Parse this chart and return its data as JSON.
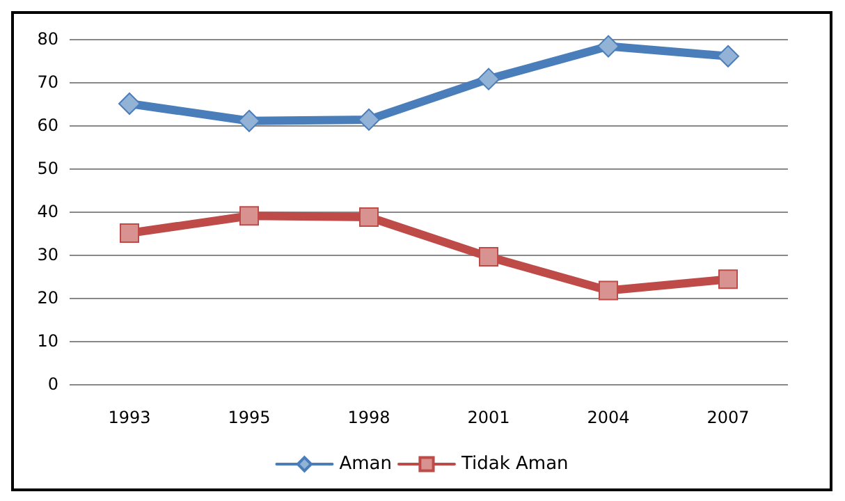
{
  "chart_data": {
    "type": "line",
    "categories": [
      "1993",
      "1995",
      "1998",
      "2001",
      "2004",
      "2007"
    ],
    "series": [
      {
        "name": "Aman",
        "color": "#4a7ebb",
        "marker": "diamond",
        "values": [
          65,
          61,
          61.3,
          70.7,
          78.3,
          76
        ]
      },
      {
        "name": "Tidak Aman",
        "color": "#be4b48",
        "marker": "square",
        "values": [
          35,
          39,
          38.7,
          29.5,
          21.7,
          24.3
        ]
      }
    ],
    "ylim": [
      0,
      80
    ],
    "yticks": [
      0,
      10,
      20,
      30,
      40,
      50,
      60,
      70,
      80
    ],
    "grid": "y",
    "legend": "bottom"
  }
}
